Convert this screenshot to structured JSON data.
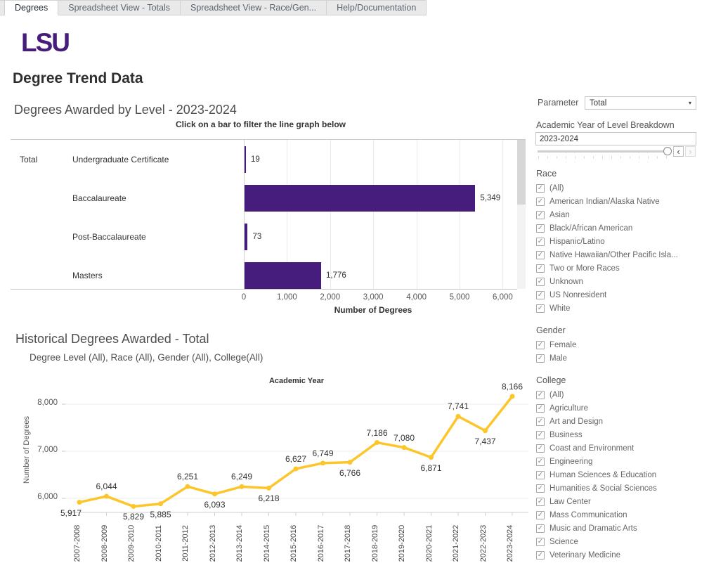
{
  "tabs": [
    {
      "label": "Degrees",
      "active": true
    },
    {
      "label": "Spreadsheet View - Totals",
      "active": false
    },
    {
      "label": "Spreadsheet View - Race/Gen...",
      "active": false
    },
    {
      "label": "Help/Documentation",
      "active": false
    }
  ],
  "header": {
    "logo": "LSU",
    "page_title": "Degree Trend Data"
  },
  "brand": {
    "purple": "#461D7C",
    "gold": "#FCC62B"
  },
  "chart_data": [
    {
      "type": "bar",
      "title": "Degrees Awarded by Level - 2023-2024",
      "subtitle": "Click on a bar to filter the line graph below",
      "row_group": "Total",
      "categories": [
        "Undergraduate Certificate",
        "Baccalaureate",
        "Post-Baccalaureate",
        "Masters"
      ],
      "values": [
        19,
        5349,
        73,
        1776
      ],
      "value_labels": [
        "19",
        "5,349",
        "73",
        "1,776"
      ],
      "xlabel": "Number of Degrees",
      "xticks": [
        0,
        1000,
        2000,
        3000,
        4000,
        5000,
        6000
      ],
      "xtick_labels": [
        "0",
        "1,000",
        "2,000",
        "3,000",
        "4,000",
        "5,000",
        "6,000"
      ],
      "xlim": [
        0,
        6350
      ],
      "bar_color": "#461D7C",
      "grid": true
    },
    {
      "type": "line",
      "title": "Historical Degrees Awarded - Total",
      "subtitle": "Degree Level (All), Race (All), Gender (All), College(All)",
      "axis_title_top": "Academic Year",
      "ylabel": "Number of Degrees",
      "categories": [
        "2007-2008",
        "2008-2009",
        "2009-2010",
        "2010-2011",
        "2011-2012",
        "2012-2013",
        "2013-2014",
        "2014-2015",
        "2015-2016",
        "2016-2017",
        "2017-2018",
        "2018-2019",
        "2019-2020",
        "2020-2021",
        "2021-2022",
        "2022-2023",
        "2023-2024"
      ],
      "values": [
        5917,
        6044,
        5829,
        5885,
        6251,
        6093,
        6249,
        6218,
        6627,
        6749,
        6766,
        7186,
        7080,
        6871,
        7741,
        7437,
        8166
      ],
      "value_labels": [
        "5,917",
        "6,044",
        "5,829",
        "5,885",
        "6,251",
        "6,093",
        "6,249",
        "6,218",
        "6,627",
        "6,749",
        "6,766",
        "7,186",
        "7,080",
        "6,871",
        "7,741",
        "7,437",
        "8,166"
      ],
      "label_positions": [
        "below",
        "above",
        "below",
        "below",
        "above",
        "below",
        "above",
        "below",
        "above",
        "above",
        "below",
        "above",
        "above",
        "below",
        "above",
        "below",
        "above"
      ],
      "yticks": [
        6000,
        7000,
        8000
      ],
      "ytick_labels": [
        "6,000",
        "7,000",
        "8,000"
      ],
      "ylim": [
        5700,
        8300
      ],
      "line_color": "#FCC62B",
      "grid": true
    }
  ],
  "sidebar": {
    "parameter": {
      "label": "Parameter",
      "value": "Total",
      "caret": "▾"
    },
    "year_filter": {
      "label": "Academic Year of Level Breakdown",
      "value": "2023-2024",
      "prev": "‹",
      "next": "›"
    },
    "race": {
      "label": "Race",
      "checked": true,
      "items": [
        "(All)",
        "American Indian/Alaska Native",
        "Asian",
        "Black/African American",
        "Hispanic/Latino",
        "Native Hawaiian/Other Pacific Isla...",
        "Two or More Races",
        "Unknown",
        "US Nonresident",
        "White"
      ]
    },
    "gender": {
      "label": "Gender",
      "checked": true,
      "items": [
        "Female",
        "Male"
      ]
    },
    "college": {
      "label": "College",
      "checked": true,
      "items": [
        "(All)",
        "Agriculture",
        "Art and Design",
        "Business",
        "Coast and Environment",
        "Engineering",
        "Human Sciences & Education",
        "Humanities & Social Sciences",
        "Law Center",
        "Mass Communication",
        "Music and Dramatic Arts",
        "Science",
        "Veterinary Medicine"
      ]
    },
    "checkmark": "✓"
  }
}
